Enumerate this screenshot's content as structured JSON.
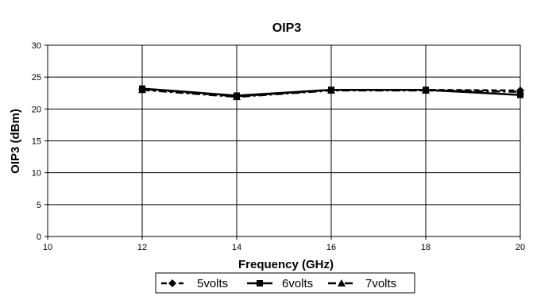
{
  "chart_data": {
    "type": "line",
    "title": "OIP3",
    "xlabel": "Frequency (GHz)",
    "ylabel": "OIP3 (dBm)",
    "xlim": [
      10,
      20
    ],
    "ylim": [
      0,
      30
    ],
    "x_ticks": [
      "10",
      "12",
      "14",
      "16",
      "18",
      "20"
    ],
    "y_ticks": [
      "0",
      "5",
      "10",
      "15",
      "20",
      "25",
      "30"
    ],
    "grid": true,
    "legend_position": "bottom",
    "x": [
      12,
      14,
      16,
      18,
      20
    ],
    "series": [
      {
        "name": "5volts",
        "marker": "diamond",
        "line_style": "dashed",
        "values": [
          23.1,
          22.0,
          23.0,
          23.0,
          22.9
        ]
      },
      {
        "name": "6volts",
        "marker": "square",
        "line_style": "solid",
        "values": [
          23.2,
          22.1,
          23.0,
          23.0,
          22.2
        ]
      },
      {
        "name": "7volts",
        "marker": "triangle",
        "line_style": "dash-dot",
        "values": [
          23.0,
          21.9,
          22.9,
          22.9,
          22.7
        ]
      }
    ],
    "colors": {
      "series": "#000000",
      "grid": "#000000",
      "background": "#ffffff"
    }
  }
}
